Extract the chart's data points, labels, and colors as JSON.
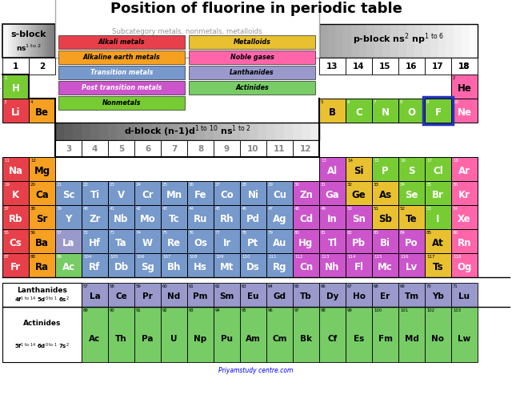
{
  "title": "Position of fluorine in periodic table",
  "footer": "Priyamstudy centre.com",
  "colors": {
    "alkali": "#e8404a",
    "alkaline": "#f5a020",
    "transition": "#7799cc",
    "post_transition": "#cc55cc",
    "nonmetal": "#77cc33",
    "metalloid": "#e8c030",
    "noble_gas": "#ff66aa",
    "lanthanide": "#9999cc",
    "actinide": "#77cc66",
    "zinc_group": "#cc55cc"
  },
  "elements": [
    {
      "sym": "H",
      "num": 1,
      "row": 1,
      "col": 1,
      "cat": "nonmetal"
    },
    {
      "sym": "He",
      "num": 2,
      "row": 1,
      "col": 18,
      "cat": "noble_gas"
    },
    {
      "sym": "Li",
      "num": 3,
      "row": 2,
      "col": 1,
      "cat": "alkali"
    },
    {
      "sym": "Be",
      "num": 4,
      "row": 2,
      "col": 2,
      "cat": "alkaline"
    },
    {
      "sym": "B",
      "num": 5,
      "row": 2,
      "col": 13,
      "cat": "metalloid"
    },
    {
      "sym": "C",
      "num": 6,
      "row": 2,
      "col": 14,
      "cat": "nonmetal"
    },
    {
      "sym": "N",
      "num": 7,
      "row": 2,
      "col": 15,
      "cat": "nonmetal"
    },
    {
      "sym": "O",
      "num": 8,
      "row": 2,
      "col": 16,
      "cat": "nonmetal"
    },
    {
      "sym": "F",
      "num": 9,
      "row": 2,
      "col": 17,
      "cat": "nonmetal",
      "highlight": true
    },
    {
      "sym": "Ne",
      "num": 10,
      "row": 2,
      "col": 18,
      "cat": "noble_gas"
    },
    {
      "sym": "Na",
      "num": 11,
      "row": 3,
      "col": 1,
      "cat": "alkali"
    },
    {
      "sym": "Mg",
      "num": 12,
      "row": 3,
      "col": 2,
      "cat": "alkaline"
    },
    {
      "sym": "Al",
      "num": 13,
      "row": 3,
      "col": 13,
      "cat": "post_transition"
    },
    {
      "sym": "Si",
      "num": 14,
      "row": 3,
      "col": 14,
      "cat": "metalloid"
    },
    {
      "sym": "P",
      "num": 15,
      "row": 3,
      "col": 15,
      "cat": "nonmetal"
    },
    {
      "sym": "S",
      "num": 16,
      "row": 3,
      "col": 16,
      "cat": "nonmetal"
    },
    {
      "sym": "Cl",
      "num": 17,
      "row": 3,
      "col": 17,
      "cat": "nonmetal"
    },
    {
      "sym": "Ar",
      "num": 18,
      "row": 3,
      "col": 18,
      "cat": "noble_gas"
    },
    {
      "sym": "K",
      "num": 19,
      "row": 4,
      "col": 1,
      "cat": "alkali"
    },
    {
      "sym": "Ca",
      "num": 20,
      "row": 4,
      "col": 2,
      "cat": "alkaline"
    },
    {
      "sym": "Sc",
      "num": 21,
      "row": 4,
      "col": 3,
      "cat": "transition"
    },
    {
      "sym": "Ti",
      "num": 22,
      "row": 4,
      "col": 4,
      "cat": "transition"
    },
    {
      "sym": "V",
      "num": 23,
      "row": 4,
      "col": 5,
      "cat": "transition"
    },
    {
      "sym": "Cr",
      "num": 24,
      "row": 4,
      "col": 6,
      "cat": "transition"
    },
    {
      "sym": "Mn",
      "num": 25,
      "row": 4,
      "col": 7,
      "cat": "transition"
    },
    {
      "sym": "Fe",
      "num": 26,
      "row": 4,
      "col": 8,
      "cat": "transition"
    },
    {
      "sym": "Co",
      "num": 27,
      "row": 4,
      "col": 9,
      "cat": "transition"
    },
    {
      "sym": "Ni",
      "num": 28,
      "row": 4,
      "col": 10,
      "cat": "transition"
    },
    {
      "sym": "Cu",
      "num": 29,
      "row": 4,
      "col": 11,
      "cat": "transition"
    },
    {
      "sym": "Zn",
      "num": 30,
      "row": 4,
      "col": 12,
      "cat": "zinc_group"
    },
    {
      "sym": "Ga",
      "num": 31,
      "row": 4,
      "col": 13,
      "cat": "post_transition"
    },
    {
      "sym": "Ge",
      "num": 32,
      "row": 4,
      "col": 14,
      "cat": "metalloid"
    },
    {
      "sym": "As",
      "num": 33,
      "row": 4,
      "col": 15,
      "cat": "metalloid"
    },
    {
      "sym": "Se",
      "num": 34,
      "row": 4,
      "col": 16,
      "cat": "nonmetal"
    },
    {
      "sym": "Br",
      "num": 35,
      "row": 4,
      "col": 17,
      "cat": "nonmetal"
    },
    {
      "sym": "Kr",
      "num": 36,
      "row": 4,
      "col": 18,
      "cat": "noble_gas"
    },
    {
      "sym": "Rb",
      "num": 37,
      "row": 5,
      "col": 1,
      "cat": "alkali"
    },
    {
      "sym": "Sr",
      "num": 38,
      "row": 5,
      "col": 2,
      "cat": "alkaline"
    },
    {
      "sym": "Y",
      "num": 39,
      "row": 5,
      "col": 3,
      "cat": "transition"
    },
    {
      "sym": "Zr",
      "num": 40,
      "row": 5,
      "col": 4,
      "cat": "transition"
    },
    {
      "sym": "Nb",
      "num": 41,
      "row": 5,
      "col": 5,
      "cat": "transition"
    },
    {
      "sym": "Mo",
      "num": 42,
      "row": 5,
      "col": 6,
      "cat": "transition"
    },
    {
      "sym": "Tc",
      "num": 43,
      "row": 5,
      "col": 7,
      "cat": "transition"
    },
    {
      "sym": "Ru",
      "num": 44,
      "row": 5,
      "col": 8,
      "cat": "transition"
    },
    {
      "sym": "Rh",
      "num": 45,
      "row": 5,
      "col": 9,
      "cat": "transition"
    },
    {
      "sym": "Pd",
      "num": 46,
      "row": 5,
      "col": 10,
      "cat": "transition"
    },
    {
      "sym": "Ag",
      "num": 47,
      "row": 5,
      "col": 11,
      "cat": "transition"
    },
    {
      "sym": "Cd",
      "num": 48,
      "row": 5,
      "col": 12,
      "cat": "zinc_group"
    },
    {
      "sym": "In",
      "num": 49,
      "row": 5,
      "col": 13,
      "cat": "post_transition"
    },
    {
      "sym": "Sn",
      "num": 50,
      "row": 5,
      "col": 14,
      "cat": "post_transition"
    },
    {
      "sym": "Sb",
      "num": 51,
      "row": 5,
      "col": 15,
      "cat": "metalloid"
    },
    {
      "sym": "Te",
      "num": 52,
      "row": 5,
      "col": 16,
      "cat": "metalloid"
    },
    {
      "sym": "I",
      "num": 53,
      "row": 5,
      "col": 17,
      "cat": "nonmetal"
    },
    {
      "sym": "Xe",
      "num": 54,
      "row": 5,
      "col": 18,
      "cat": "noble_gas"
    },
    {
      "sym": "Cs",
      "num": 55,
      "row": 6,
      "col": 1,
      "cat": "alkali"
    },
    {
      "sym": "Ba",
      "num": 56,
      "row": 6,
      "col": 2,
      "cat": "alkaline"
    },
    {
      "sym": "La",
      "num": 57,
      "row": 6,
      "col": 3,
      "cat": "lanthanide"
    },
    {
      "sym": "Hf",
      "num": 72,
      "row": 6,
      "col": 4,
      "cat": "transition"
    },
    {
      "sym": "Ta",
      "num": 73,
      "row": 6,
      "col": 5,
      "cat": "transition"
    },
    {
      "sym": "W",
      "num": 74,
      "row": 6,
      "col": 6,
      "cat": "transition"
    },
    {
      "sym": "Re",
      "num": 75,
      "row": 6,
      "col": 7,
      "cat": "transition"
    },
    {
      "sym": "Os",
      "num": 76,
      "row": 6,
      "col": 8,
      "cat": "transition"
    },
    {
      "sym": "Ir",
      "num": 77,
      "row": 6,
      "col": 9,
      "cat": "transition"
    },
    {
      "sym": "Pt",
      "num": 78,
      "row": 6,
      "col": 10,
      "cat": "transition"
    },
    {
      "sym": "Au",
      "num": 79,
      "row": 6,
      "col": 11,
      "cat": "transition"
    },
    {
      "sym": "Hg",
      "num": 80,
      "row": 6,
      "col": 12,
      "cat": "zinc_group"
    },
    {
      "sym": "Tl",
      "num": 81,
      "row": 6,
      "col": 13,
      "cat": "post_transition"
    },
    {
      "sym": "Pb",
      "num": 82,
      "row": 6,
      "col": 14,
      "cat": "post_transition"
    },
    {
      "sym": "Bi",
      "num": 83,
      "row": 6,
      "col": 15,
      "cat": "post_transition"
    },
    {
      "sym": "Po",
      "num": 84,
      "row": 6,
      "col": 16,
      "cat": "post_transition"
    },
    {
      "sym": "At",
      "num": 85,
      "row": 6,
      "col": 17,
      "cat": "metalloid"
    },
    {
      "sym": "Rn",
      "num": 86,
      "row": 6,
      "col": 18,
      "cat": "noble_gas"
    },
    {
      "sym": "Fr",
      "num": 87,
      "row": 7,
      "col": 1,
      "cat": "alkali"
    },
    {
      "sym": "Ra",
      "num": 88,
      "row": 7,
      "col": 2,
      "cat": "alkaline"
    },
    {
      "sym": "Ac",
      "num": 89,
      "row": 7,
      "col": 3,
      "cat": "actinide"
    },
    {
      "sym": "Rf",
      "num": 104,
      "row": 7,
      "col": 4,
      "cat": "transition"
    },
    {
      "sym": "Db",
      "num": 105,
      "row": 7,
      "col": 5,
      "cat": "transition"
    },
    {
      "sym": "Sg",
      "num": 106,
      "row": 7,
      "col": 6,
      "cat": "transition"
    },
    {
      "sym": "Bh",
      "num": 107,
      "row": 7,
      "col": 7,
      "cat": "transition"
    },
    {
      "sym": "Hs",
      "num": 108,
      "row": 7,
      "col": 8,
      "cat": "transition"
    },
    {
      "sym": "Mt",
      "num": 109,
      "row": 7,
      "col": 9,
      "cat": "transition"
    },
    {
      "sym": "Ds",
      "num": 110,
      "row": 7,
      "col": 10,
      "cat": "transition"
    },
    {
      "sym": "Rg",
      "num": 111,
      "row": 7,
      "col": 11,
      "cat": "transition"
    },
    {
      "sym": "Cn",
      "num": 112,
      "row": 7,
      "col": 12,
      "cat": "zinc_group"
    },
    {
      "sym": "Nh",
      "num": 113,
      "row": 7,
      "col": 13,
      "cat": "post_transition"
    },
    {
      "sym": "Fl",
      "num": 114,
      "row": 7,
      "col": 14,
      "cat": "post_transition"
    },
    {
      "sym": "Mc",
      "num": 115,
      "row": 7,
      "col": 15,
      "cat": "post_transition"
    },
    {
      "sym": "Lv",
      "num": 116,
      "row": 7,
      "col": 16,
      "cat": "post_transition"
    },
    {
      "sym": "Ts",
      "num": 117,
      "row": 7,
      "col": 17,
      "cat": "metalloid"
    },
    {
      "sym": "Og",
      "num": 118,
      "row": 7,
      "col": 18,
      "cat": "noble_gas"
    }
  ],
  "lanthanides": [
    {
      "sym": "La",
      "num": 57
    },
    {
      "sym": "Ce",
      "num": 58
    },
    {
      "sym": "Pr",
      "num": 59
    },
    {
      "sym": "Nd",
      "num": 60
    },
    {
      "sym": "Pm",
      "num": 61
    },
    {
      "sym": "Sm",
      "num": 62
    },
    {
      "sym": "Eu",
      "num": 63
    },
    {
      "sym": "Gd",
      "num": 64
    },
    {
      "sym": "Tb",
      "num": 65
    },
    {
      "sym": "Dy",
      "num": 66
    },
    {
      "sym": "Ho",
      "num": 67
    },
    {
      "sym": "Er",
      "num": 68
    },
    {
      "sym": "Tm",
      "num": 69
    },
    {
      "sym": "Yb",
      "num": 70
    },
    {
      "sym": "Lu",
      "num": 71
    }
  ],
  "actinides": [
    {
      "sym": "Ac",
      "num": 89
    },
    {
      "sym": "Th",
      "num": 90
    },
    {
      "sym": "Pa",
      "num": 91
    },
    {
      "sym": "U",
      "num": 92
    },
    {
      "sym": "Np",
      "num": 93
    },
    {
      "sym": "Pu",
      "num": 94
    },
    {
      "sym": "Am",
      "num": 95
    },
    {
      "sym": "Cm",
      "num": 96
    },
    {
      "sym": "Bk",
      "num": 97
    },
    {
      "sym": "Cf",
      "num": 98
    },
    {
      "sym": "Es",
      "num": 99
    },
    {
      "sym": "Fm",
      "num": 100
    },
    {
      "sym": "Md",
      "num": 101
    },
    {
      "sym": "No",
      "num": 102
    },
    {
      "sym": "Lw",
      "num": 103
    }
  ]
}
